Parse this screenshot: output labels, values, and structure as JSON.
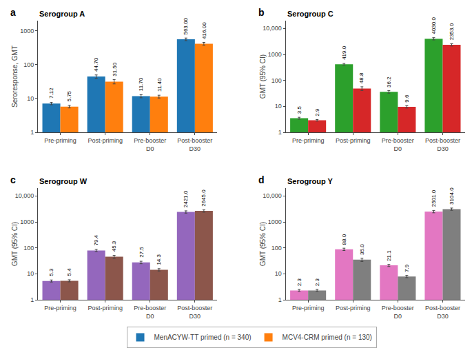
{
  "chart_data": [
    {
      "type": "bar",
      "title": "Serogroup A",
      "annotations": [
        "a"
      ],
      "ylabel": "Seroresponse, GMT",
      "categories": [
        "Pre-priming",
        "Post-priming",
        "Pre-booster\nD0",
        "Post-booster\nD30"
      ],
      "series": [
        {
          "name": "MenACYW-TT primed (n = 340)",
          "values": [
            7.12,
            44.7,
            11.7,
            563.0
          ],
          "errors": [
            [
              0.6,
              0.6
            ],
            [
              5.0,
              5.0
            ],
            [
              1.2,
              1.2
            ],
            [
              50,
              50
            ]
          ],
          "value_labels": [
            "7.12",
            "44.70",
            "11.70",
            "563.00"
          ]
        },
        {
          "name": "MCV4-CRM primed (n = 130)",
          "values": [
            5.75,
            31.5,
            11.4,
            416.0
          ],
          "errors": [
            [
              0.5,
              0.5
            ],
            [
              4.5,
              4.5
            ],
            [
              1.1,
              1.1
            ],
            [
              40,
              40
            ]
          ],
          "value_labels": [
            "5.75",
            "31.50",
            "11.40",
            "416.00"
          ]
        }
      ],
      "log": "y",
      "ylim": [
        1,
        2000
      ],
      "yticks": [
        1,
        10,
        100,
        1000
      ],
      "grid": false,
      "data_labels": true,
      "legend": "bottom"
    },
    {
      "type": "bar",
      "title": "Serogroup C",
      "annotations": [
        "b"
      ],
      "ylabel": "GMT (95% CI)",
      "categories": [
        "Pre-priming",
        "Post-priming",
        "Pre-booster\nD0",
        "Post-booster\nD30"
      ],
      "series": [
        {
          "name": "MenACYW-TT primed (n = 340)",
          "values": [
            3.5,
            419.0,
            36.2,
            4030.0
          ],
          "errors": [
            [
              0.3,
              0.3
            ],
            [
              30.0,
              30.0
            ],
            [
              4.0,
              4.0
            ],
            [
              400,
              400
            ]
          ],
          "value_labels": [
            "3.5",
            "419.0",
            "36.2",
            "4030.0"
          ]
        },
        {
          "name": "MCV4-CRM primed (n = 130)",
          "values": [
            2.9,
            48.8,
            9.6,
            2353.0
          ],
          "errors": [
            [
              0.2,
              0.2
            ],
            [
              8.0,
              8.0
            ],
            [
              1.0,
              1.0
            ],
            [
              250,
              250
            ]
          ],
          "value_labels": [
            "2.9",
            "48.8",
            "9.6",
            "2353.0"
          ]
        }
      ],
      "log": "y",
      "ylim": [
        1,
        20000
      ],
      "yticks": [
        1,
        10,
        100,
        1000,
        {
          "value": 10000,
          "label": "10,000"
        }
      ],
      "grid": false,
      "data_labels": true,
      "legend": "bottom"
    },
    {
      "type": "bar",
      "title": "Serogroup W",
      "annotations": [
        "c"
      ],
      "ylabel": "GMT (95% CI)",
      "categories": [
        "Pre-priming",
        "Post-priming",
        "Pre-booster\nD0",
        "Post-booster\nD30"
      ],
      "series": [
        {
          "name": "MenACYW-TT primed (n = 340)",
          "values": [
            5.3,
            79.4,
            27.5,
            2421.0
          ],
          "errors": [
            [
              0.5,
              0.5
            ],
            [
              8.0,
              8.0
            ],
            [
              3.0,
              3.0
            ],
            [
              250,
              250
            ]
          ],
          "value_labels": [
            "5.3",
            "79.4",
            "27.5",
            "2421.0"
          ]
        },
        {
          "name": "MCV4-CRM primed (n = 130)",
          "values": [
            5.4,
            45.3,
            14.3,
            2645.0
          ],
          "errors": [
            [
              0.5,
              0.5
            ],
            [
              6.0,
              6.0
            ],
            [
              1.5,
              1.5
            ],
            [
              280,
              280
            ]
          ],
          "value_labels": [
            "5.4",
            "45.3",
            "14.3",
            "2645.0"
          ]
        }
      ],
      "log": "y",
      "ylim": [
        1,
        20000
      ],
      "yticks": [
        1,
        10,
        100,
        1000,
        {
          "value": 10000,
          "label": "10,000"
        }
      ],
      "grid": false,
      "data_labels": true,
      "legend": "bottom"
    },
    {
      "type": "bar",
      "title": "Serogroup Y",
      "annotations": [
        "d"
      ],
      "ylabel": "GMT (95% CI)",
      "categories": [
        "Pre-priming",
        "Post-priming",
        "Pre-booster\nD0",
        "Post-booster\nD30"
      ],
      "series": [
        {
          "name": "MenACYW-TT primed (n = 340)",
          "values": [
            2.3,
            88.0,
            21.1,
            2501.0
          ],
          "errors": [
            [
              0.2,
              0.2
            ],
            [
              9.0,
              9.0
            ],
            [
              2.0,
              2.0
            ],
            [
              260,
              260
            ]
          ],
          "value_labels": [
            "2.3",
            "88.0",
            "21.1",
            "2501.0"
          ]
        },
        {
          "name": "MCV4-CRM primed (n = 130)",
          "values": [
            2.3,
            35.0,
            7.9,
            3104.0
          ],
          "errors": [
            [
              0.2,
              0.2
            ],
            [
              5.0,
              5.0
            ],
            [
              0.8,
              0.8
            ],
            [
              310,
              310
            ]
          ],
          "value_labels": [
            "2.3",
            "35.0",
            "7.9",
            "3104.0"
          ]
        }
      ],
      "log": "y",
      "ylim": [
        1,
        20000
      ],
      "yticks": [
        1,
        10,
        100,
        1000,
        {
          "value": 10000,
          "label": "10,000"
        }
      ],
      "grid": false,
      "data_labels": true,
      "legend": "bottom"
    }
  ]
}
